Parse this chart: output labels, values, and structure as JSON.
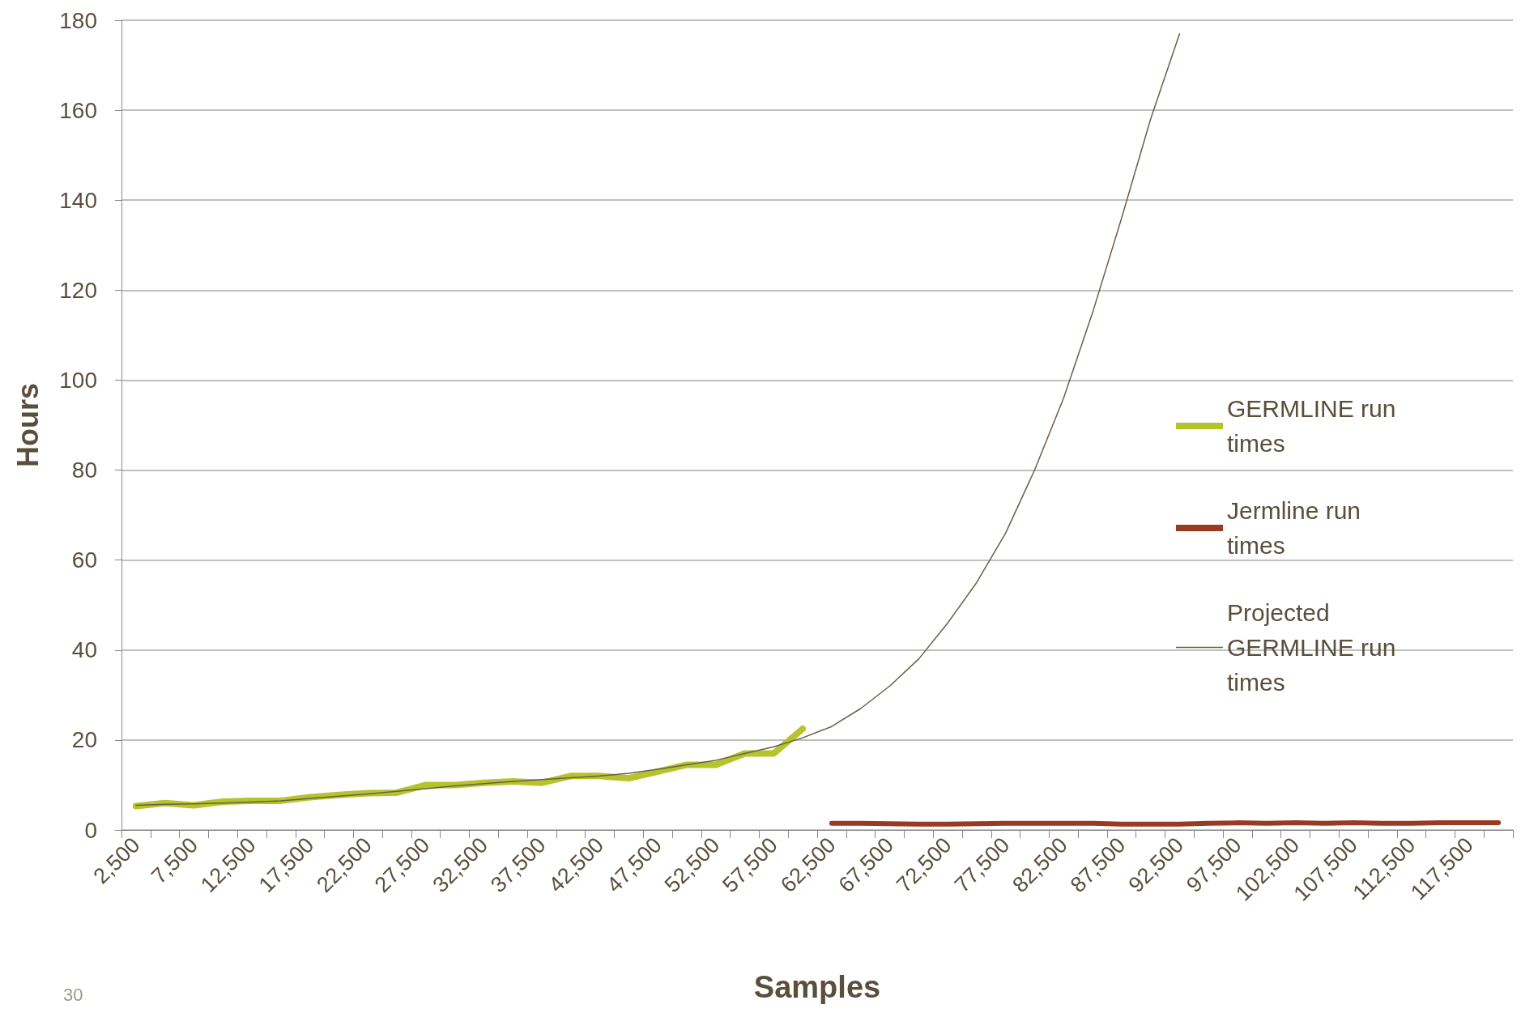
{
  "chart_data": {
    "type": "line",
    "xlabel": "Samples",
    "ylabel": "Hours",
    "categories": [
      "2,500",
      null,
      "7,500",
      null,
      "12,500",
      null,
      "17,500",
      null,
      "22,500",
      null,
      "27,500",
      null,
      "32,500",
      null,
      "37,500",
      null,
      "42,500",
      null,
      "47,500",
      null,
      "52,500",
      null,
      "57,500",
      null,
      "62,500",
      null,
      "67,500",
      null,
      "72,500",
      null,
      "77,500",
      null,
      "82,500",
      null,
      "87,500",
      null,
      "92,500",
      null,
      "97,500",
      null,
      "102,500",
      null,
      "107,500",
      null,
      "112,500",
      null,
      "117,500",
      null
    ],
    "series": [
      {
        "name": "GERMLINE run times",
        "color": "#b5c42a",
        "values": [
          5.3,
          6,
          5.5,
          6.3,
          6.5,
          6.5,
          7.3,
          7.8,
          8.2,
          8.3,
          10,
          10,
          10.5,
          10.8,
          10.5,
          12,
          12,
          11.5,
          13,
          14.5,
          14.5,
          17,
          17,
          22.5,
          null,
          null,
          null,
          null,
          null,
          null,
          null,
          null,
          null,
          null,
          null,
          null,
          null,
          null,
          null,
          null,
          null,
          null,
          null,
          null,
          null,
          null,
          null,
          null
        ]
      },
      {
        "name": "Jermline run times",
        "color": "#9b3a24",
        "values": [
          null,
          null,
          null,
          null,
          null,
          null,
          null,
          null,
          null,
          null,
          null,
          null,
          null,
          null,
          null,
          null,
          null,
          null,
          null,
          null,
          null,
          null,
          null,
          null,
          1.5,
          1.5,
          1.4,
          1.3,
          1.3,
          1.4,
          1.5,
          1.5,
          1.5,
          1.5,
          1.3,
          1.3,
          1.3,
          1.5,
          1.6,
          1.5,
          1.6,
          1.5,
          1.6,
          1.5,
          1.5,
          1.6,
          1.6,
          1.6
        ]
      },
      {
        "name": "Projected GERMLINE run times",
        "color": "#6b5e4a",
        "values": [
          5.5,
          5.7,
          5.8,
          6,
          6.2,
          6.5,
          7,
          7.5,
          8,
          8.6,
          9.2,
          9.8,
          10.3,
          10.8,
          11.2,
          11.6,
          12,
          12.6,
          13.5,
          14.5,
          15.5,
          17,
          18.5,
          20.5,
          23,
          27,
          32,
          38,
          46,
          55,
          66,
          80,
          96,
          115,
          136,
          158,
          177,
          null,
          null,
          null,
          null,
          null,
          null,
          null,
          null,
          null,
          null,
          null
        ]
      }
    ],
    "ylim": [
      0,
      180
    ],
    "yticks": [
      0,
      20,
      40,
      60,
      80,
      100,
      120,
      140,
      160,
      180
    ],
    "grid": "y",
    "legend": "right",
    "marker": "none",
    "line_style": "solid",
    "annotations": [
      "30"
    ]
  }
}
